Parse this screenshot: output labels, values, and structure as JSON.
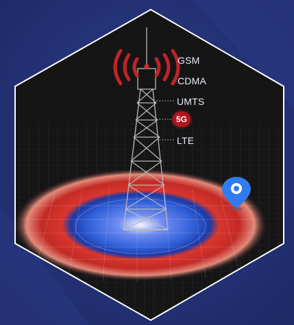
{
  "network_labels": {
    "gsm": "GSM",
    "cdma": "CDMA",
    "umts": "UMTS",
    "five_g": "5G",
    "lte": "LTE"
  },
  "colors": {
    "background": "#233277",
    "hexagon_fill": "#161616",
    "hexagon_border": "#ffffff",
    "signal_waves": "#c0232a",
    "badge_5g": "#b3141c",
    "coverage_core": "#2f5fd8",
    "coverage_ring": "#d8362d",
    "location_pin": "#2f7cf0"
  },
  "icons": [
    "cell-tower-icon",
    "signal-waves-icon",
    "location-pin-icon"
  ]
}
